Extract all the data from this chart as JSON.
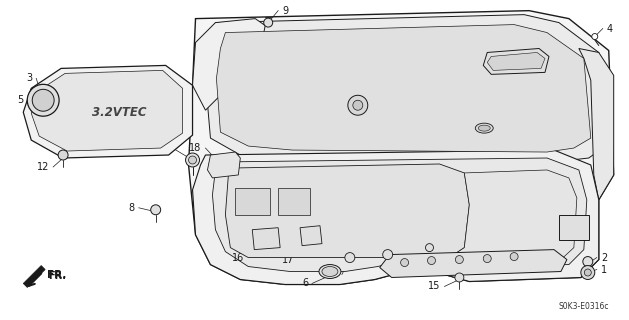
{
  "background_color": "#ffffff",
  "line_color": "#1a1a1a",
  "label_color": "#111111",
  "diagram_code": "S0K3-E0316c",
  "fr_label": "FR.",
  "figsize": [
    6.29,
    3.2
  ],
  "dpi": 100,
  "lw": 0.8
}
